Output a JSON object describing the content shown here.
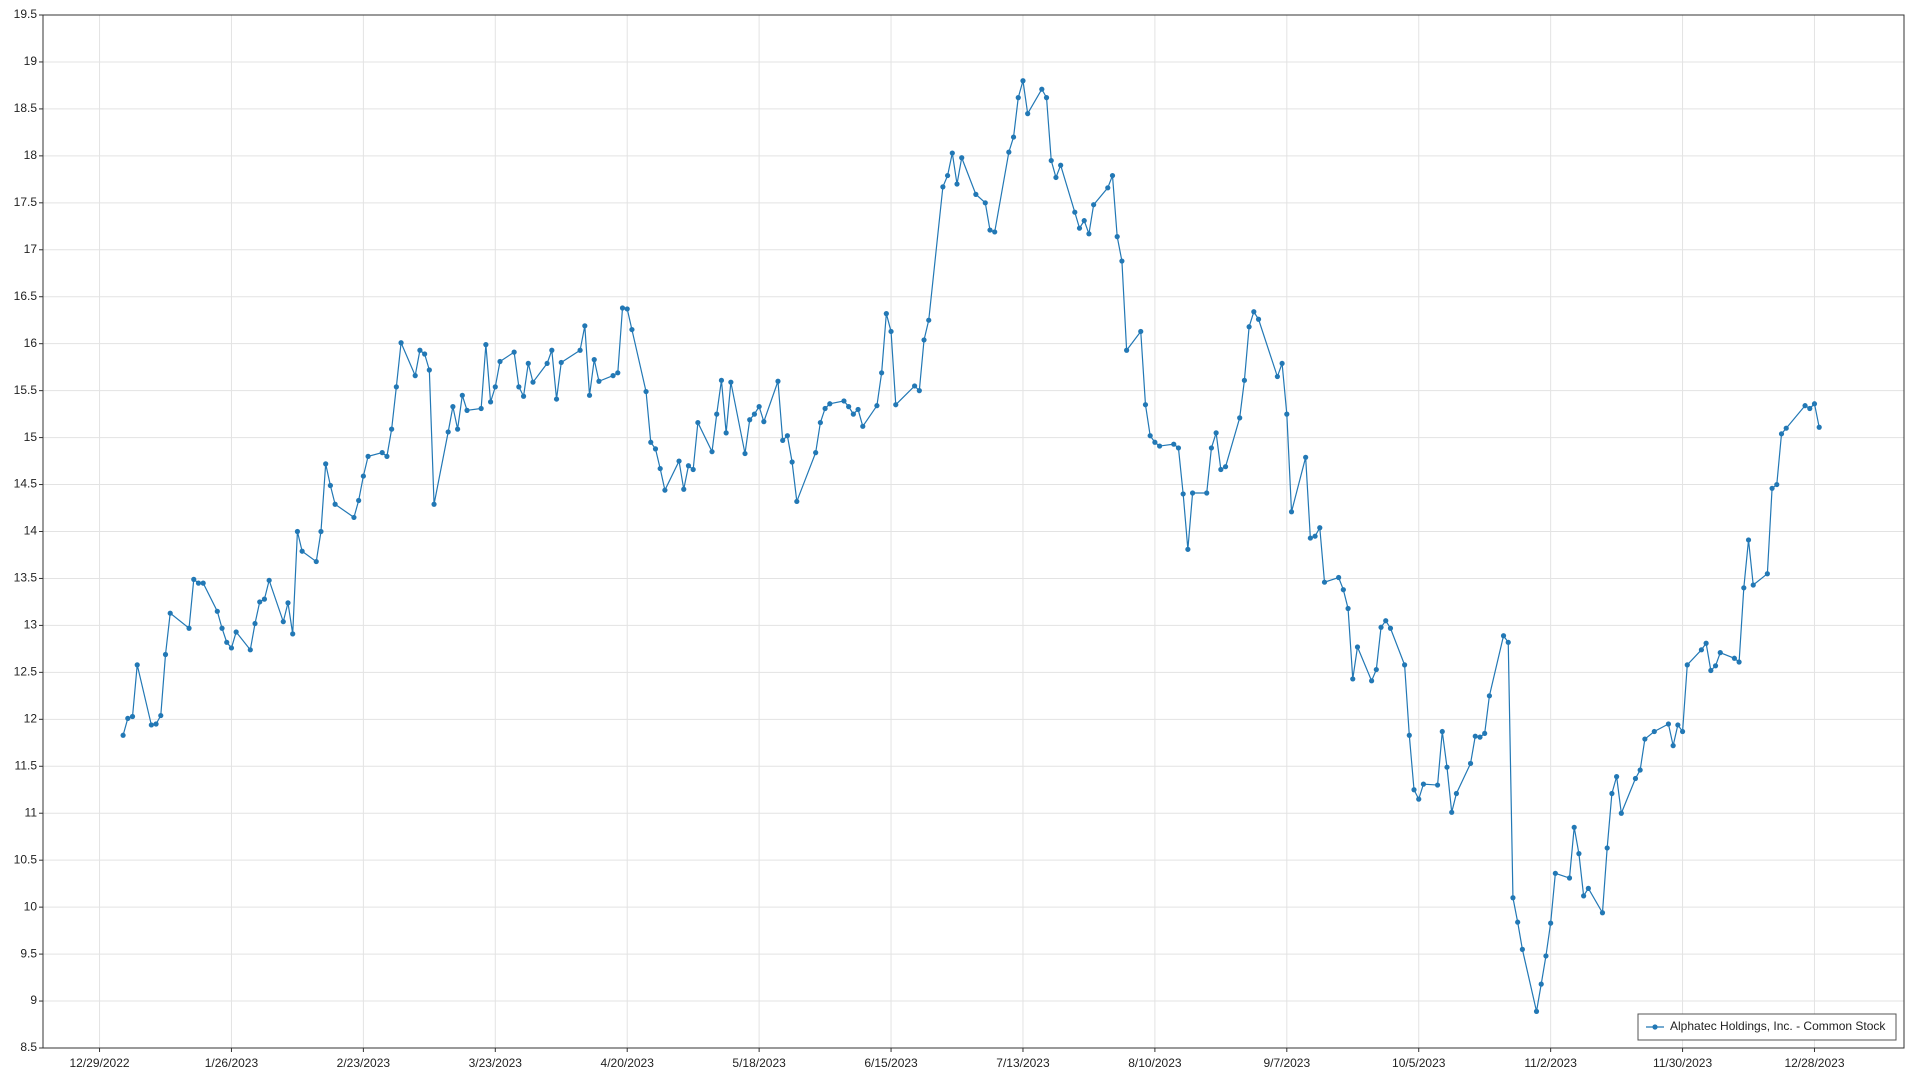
{
  "chart_data": {
    "type": "line",
    "xlim": [
      "12/17/2022",
      "1/16/2024"
    ],
    "xticks": [
      "12/29/2022",
      "1/26/2023",
      "2/23/2023",
      "3/23/2023",
      "4/20/2023",
      "5/18/2023",
      "6/15/2023",
      "7/13/2023",
      "8/10/2023",
      "9/7/2023",
      "10/5/2023",
      "11/2/2023",
      "11/30/2023",
      "12/28/2023"
    ],
    "ylim": [
      8.5,
      19.5
    ],
    "yticks": [
      8.5,
      9,
      9.5,
      10,
      10.5,
      11,
      11.5,
      12,
      12.5,
      13,
      13.5,
      14,
      14.5,
      15,
      15.5,
      16,
      16.5,
      17,
      17.5,
      18,
      18.5,
      19,
      19.5
    ],
    "grid": true,
    "legend": "bottom-right",
    "series": [
      {
        "name": "Alphatec Holdings, Inc. - Common Stock",
        "color": "#2278b5",
        "x": [
          "1/3/2023",
          "1/4/2023",
          "1/5/2023",
          "1/6/2023",
          "1/9/2023",
          "1/10/2023",
          "1/11/2023",
          "1/12/2023",
          "1/13/2023",
          "1/17/2023",
          "1/18/2023",
          "1/19/2023",
          "1/20/2023",
          "1/23/2023",
          "1/24/2023",
          "1/25/2023",
          "1/26/2023",
          "1/27/2023",
          "1/30/2023",
          "1/31/2023",
          "2/1/2023",
          "2/2/2023",
          "2/3/2023",
          "2/6/2023",
          "2/7/2023",
          "2/8/2023",
          "2/9/2023",
          "2/10/2023",
          "2/13/2023",
          "2/14/2023",
          "2/15/2023",
          "2/16/2023",
          "2/17/2023",
          "2/21/2023",
          "2/22/2023",
          "2/23/2023",
          "2/24/2023",
          "2/27/2023",
          "2/28/2023",
          "3/1/2023",
          "3/2/2023",
          "3/3/2023",
          "3/6/2023",
          "3/7/2023",
          "3/8/2023",
          "3/9/2023",
          "3/10/2023",
          "3/13/2023",
          "3/14/2023",
          "3/15/2023",
          "3/16/2023",
          "3/17/2023",
          "3/20/2023",
          "3/21/2023",
          "3/22/2023",
          "3/23/2023",
          "3/24/2023",
          "3/27/2023",
          "3/28/2023",
          "3/29/2023",
          "3/30/2023",
          "3/31/2023",
          "4/3/2023",
          "4/4/2023",
          "4/5/2023",
          "4/6/2023",
          "4/10/2023",
          "4/11/2023",
          "4/12/2023",
          "4/13/2023",
          "4/14/2023",
          "4/17/2023",
          "4/18/2023",
          "4/19/2023",
          "4/20/2023",
          "4/21/2023",
          "4/24/2023",
          "4/25/2023",
          "4/26/2023",
          "4/27/2023",
          "4/28/2023",
          "5/1/2023",
          "5/2/2023",
          "5/3/2023",
          "5/4/2023",
          "5/5/2023",
          "5/8/2023",
          "5/9/2023",
          "5/10/2023",
          "5/11/2023",
          "5/12/2023",
          "5/15/2023",
          "5/16/2023",
          "5/17/2023",
          "5/18/2023",
          "5/19/2023",
          "5/22/2023",
          "5/23/2023",
          "5/24/2023",
          "5/25/2023",
          "5/26/2023",
          "5/30/2023",
          "5/31/2023",
          "6/1/2023",
          "6/2/2023",
          "6/5/2023",
          "6/6/2023",
          "6/7/2023",
          "6/8/2023",
          "6/9/2023",
          "6/12/2023",
          "6/13/2023",
          "6/14/2023",
          "6/15/2023",
          "6/16/2023",
          "6/20/2023",
          "6/21/2023",
          "6/22/2023",
          "6/23/2023",
          "6/26/2023",
          "6/27/2023",
          "6/28/2023",
          "6/29/2023",
          "6/30/2023",
          "7/3/2023",
          "7/5/2023",
          "7/6/2023",
          "7/7/2023",
          "7/10/2023",
          "7/11/2023",
          "7/12/2023",
          "7/13/2023",
          "7/14/2023",
          "7/17/2023",
          "7/18/2023",
          "7/19/2023",
          "7/20/2023",
          "7/21/2023",
          "7/24/2023",
          "7/25/2023",
          "7/26/2023",
          "7/27/2023",
          "7/28/2023",
          "7/31/2023",
          "8/1/2023",
          "8/2/2023",
          "8/3/2023",
          "8/4/2023",
          "8/7/2023",
          "8/8/2023",
          "8/9/2023",
          "8/10/2023",
          "8/11/2023",
          "8/14/2023",
          "8/15/2023",
          "8/16/2023",
          "8/17/2023",
          "8/18/2023",
          "8/21/2023",
          "8/22/2023",
          "8/23/2023",
          "8/24/2023",
          "8/25/2023",
          "8/28/2023",
          "8/29/2023",
          "8/30/2023",
          "8/31/2023",
          "9/1/2023",
          "9/5/2023",
          "9/6/2023",
          "9/7/2023",
          "9/8/2023",
          "9/11/2023",
          "9/12/2023",
          "9/13/2023",
          "9/14/2023",
          "9/15/2023",
          "9/18/2023",
          "9/19/2023",
          "9/20/2023",
          "9/21/2023",
          "9/22/2023",
          "9/25/2023",
          "9/26/2023",
          "9/27/2023",
          "9/28/2023",
          "9/29/2023",
          "10/2/2023",
          "10/3/2023",
          "10/4/2023",
          "10/5/2023",
          "10/6/2023",
          "10/9/2023",
          "10/10/2023",
          "10/11/2023",
          "10/12/2023",
          "10/13/2023",
          "10/16/2023",
          "10/17/2023",
          "10/18/2023",
          "10/19/2023",
          "10/20/2023",
          "10/23/2023",
          "10/24/2023",
          "10/25/2023",
          "10/26/2023",
          "10/27/2023",
          "10/30/2023",
          "10/31/2023",
          "11/1/2023",
          "11/2/2023",
          "11/3/2023",
          "11/6/2023",
          "11/7/2023",
          "11/8/2023",
          "11/9/2023",
          "11/10/2023",
          "11/13/2023",
          "11/14/2023",
          "11/15/2023",
          "11/16/2023",
          "11/17/2023",
          "11/20/2023",
          "11/21/2023",
          "11/22/2023",
          "11/24/2023",
          "11/27/2023",
          "11/28/2023",
          "11/29/2023",
          "11/30/2023",
          "12/1/2023",
          "12/4/2023",
          "12/5/2023",
          "12/6/2023",
          "12/7/2023",
          "12/8/2023",
          "12/11/2023",
          "12/12/2023",
          "12/13/2023",
          "12/14/2023",
          "12/15/2023",
          "12/18/2023",
          "12/19/2023",
          "12/20/2023",
          "12/21/2023",
          "12/22/2023",
          "12/26/2023",
          "12/27/2023",
          "12/28/2023",
          "12/29/2023"
        ],
        "values": [
          11.83,
          12.01,
          12.03,
          12.58,
          11.94,
          11.95,
          12.04,
          12.69,
          13.13,
          12.97,
          13.49,
          13.45,
          13.45,
          13.15,
          12.97,
          12.82,
          12.76,
          12.93,
          12.74,
          13.02,
          13.25,
          13.28,
          13.48,
          13.04,
          13.24,
          12.91,
          14.0,
          13.79,
          13.68,
          14.0,
          14.72,
          14.49,
          14.29,
          14.15,
          14.33,
          14.59,
          14.8,
          14.84,
          14.8,
          15.09,
          15.54,
          16.01,
          15.66,
          15.93,
          15.89,
          15.72,
          14.29,
          15.06,
          15.33,
          15.09,
          15.45,
          15.29,
          15.31,
          15.99,
          15.38,
          15.54,
          15.81,
          15.91,
          15.54,
          15.44,
          15.79,
          15.59,
          15.79,
          15.93,
          15.41,
          15.8,
          15.93,
          16.19,
          15.45,
          15.83,
          15.6,
          15.66,
          15.69,
          16.38,
          16.37,
          16.15,
          15.49,
          14.95,
          14.88,
          14.67,
          14.44,
          14.75,
          14.45,
          14.7,
          14.66,
          15.16,
          14.85,
          15.25,
          15.61,
          15.05,
          15.59,
          14.83,
          15.19,
          15.25,
          15.33,
          15.17,
          15.6,
          14.97,
          15.02,
          14.74,
          14.32,
          14.84,
          15.16,
          15.31,
          15.36,
          15.39,
          15.33,
          15.25,
          15.3,
          15.12,
          15.34,
          15.69,
          16.32,
          16.13,
          15.35,
          15.55,
          15.5,
          16.04,
          16.25,
          17.67,
          17.79,
          18.03,
          17.7,
          17.98,
          17.59,
          17.5,
          17.21,
          17.19,
          18.04,
          18.2,
          18.62,
          18.8,
          18.45,
          18.71,
          18.62,
          17.95,
          17.77,
          17.9,
          17.4,
          17.23,
          17.31,
          17.17,
          17.48,
          17.66,
          17.79,
          17.14,
          16.88,
          15.93,
          16.13,
          15.35,
          15.02,
          14.95,
          14.91,
          14.93,
          14.89,
          14.4,
          13.81,
          14.41,
          14.41,
          14.89,
          15.05,
          14.66,
          14.69,
          15.21,
          15.61,
          16.18,
          16.34,
          16.26,
          15.65,
          15.79,
          15.25,
          14.21,
          14.79,
          13.93,
          13.95,
          14.04,
          13.46,
          13.51,
          13.38,
          13.18,
          12.43,
          12.77,
          12.41,
          12.53,
          12.98,
          13.05,
          12.97,
          12.58,
          11.83,
          11.25,
          11.15,
          11.31,
          11.3,
          11.87,
          11.49,
          11.01,
          11.21,
          11.53,
          11.82,
          11.81,
          11.85,
          12.25,
          12.89,
          12.82,
          10.1,
          9.84,
          9.55,
          8.89,
          9.18,
          9.48,
          9.83,
          10.36,
          10.31,
          10.85,
          10.57,
          10.12,
          10.2,
          9.94,
          10.63,
          11.21,
          11.39,
          11.0,
          11.37,
          11.46,
          11.79,
          11.87,
          11.95,
          11.72,
          11.94,
          11.87,
          12.58,
          12.74,
          12.81,
          12.52,
          12.57,
          12.71,
          12.65,
          12.61,
          13.4,
          13.91,
          13.43,
          13.55,
          14.46,
          14.5,
          15.04,
          15.1,
          15.34,
          15.31,
          15.36,
          15.11
        ]
      }
    ]
  }
}
